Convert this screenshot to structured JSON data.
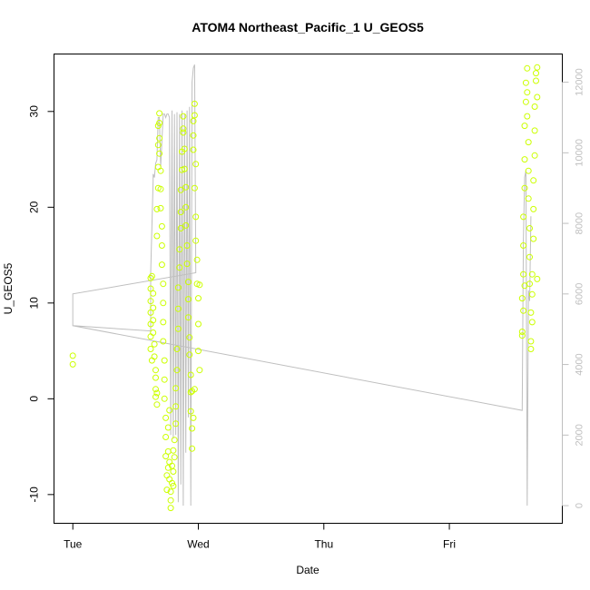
{
  "chart_data": {
    "type": "scatter",
    "title": "ATOM4 Northeast_Pacific_1 U_GEOS5",
    "xlabel": "Date",
    "ylabel": "U_GEOS5",
    "x_ticks": [
      "Tue",
      "Wed",
      "Thu",
      "Fri"
    ],
    "y_ticks": [
      "-10",
      "0",
      "10",
      "20",
      "30"
    ],
    "y2_ticks": [
      "0",
      "2000",
      "4000",
      "6000",
      "8000",
      "10000",
      "12000"
    ],
    "ylim": [
      -13,
      36
    ],
    "y2lim": [
      -500,
      12800
    ],
    "xlim": [
      -0.15,
      3.9
    ],
    "colors": {
      "points": "#ccff00",
      "line": "#bfbfbf",
      "axes": "#000000",
      "secondary_axis": "#bfbfbf"
    },
    "grid": false,
    "series": [
      {
        "values": [
          [
            0.0,
            4.5
          ],
          [
            0.0,
            3.6
          ],
          [
            0.62,
            12.6
          ],
          [
            0.62,
            11.5
          ],
          [
            0.62,
            10.2
          ],
          [
            0.62,
            9.0
          ],
          [
            0.62,
            7.8
          ],
          [
            0.62,
            6.5
          ],
          [
            0.62,
            5.2
          ],
          [
            0.63,
            4.0
          ],
          [
            0.63,
            12.8
          ],
          [
            0.64,
            11.0
          ],
          [
            0.64,
            9.5
          ],
          [
            0.64,
            8.2
          ],
          [
            0.64,
            6.9
          ],
          [
            0.65,
            5.7
          ],
          [
            0.65,
            4.4
          ],
          [
            0.66,
            3.0
          ],
          [
            0.66,
            2.2
          ],
          [
            0.66,
            1.0
          ],
          [
            0.66,
            0.2
          ],
          [
            0.67,
            0.6
          ],
          [
            0.67,
            -0.6
          ],
          [
            0.67,
            17.0
          ],
          [
            0.67,
            19.8
          ],
          [
            0.68,
            22.0
          ],
          [
            0.68,
            24.2
          ],
          [
            0.68,
            26.5
          ],
          [
            0.68,
            28.5
          ],
          [
            0.69,
            29.8
          ],
          [
            0.69,
            28.8
          ],
          [
            0.69,
            27.2
          ],
          [
            0.69,
            25.6
          ],
          [
            0.7,
            23.8
          ],
          [
            0.7,
            21.9
          ],
          [
            0.7,
            19.9
          ],
          [
            0.71,
            18.0
          ],
          [
            0.71,
            16.0
          ],
          [
            0.71,
            14.0
          ],
          [
            0.72,
            12.0
          ],
          [
            0.72,
            10.0
          ],
          [
            0.72,
            8.0
          ],
          [
            0.72,
            6.0
          ],
          [
            0.73,
            4.0
          ],
          [
            0.73,
            2.0
          ],
          [
            0.73,
            0.0
          ],
          [
            0.74,
            -2.0
          ],
          [
            0.74,
            -4.0
          ],
          [
            0.74,
            -6.0
          ],
          [
            0.75,
            -8.0
          ],
          [
            0.75,
            -9.5
          ],
          [
            0.76,
            -7.2
          ],
          [
            0.76,
            -5.5
          ],
          [
            0.76,
            -3.0
          ],
          [
            0.77,
            -1.2
          ],
          [
            0.77,
            -6.6
          ],
          [
            0.77,
            -8.4
          ],
          [
            0.78,
            -9.7
          ],
          [
            0.78,
            -11.4
          ],
          [
            0.78,
            -10.6
          ],
          [
            0.79,
            -8.8
          ],
          [
            0.79,
            -7.0
          ],
          [
            0.8,
            -5.4
          ],
          [
            0.8,
            -7.6
          ],
          [
            0.8,
            -9.1
          ],
          [
            0.81,
            -6.1
          ],
          [
            0.81,
            -4.3
          ],
          [
            0.82,
            -2.6
          ],
          [
            0.82,
            -0.8
          ],
          [
            0.82,
            1.1
          ],
          [
            0.83,
            3.0
          ],
          [
            0.83,
            5.2
          ],
          [
            0.84,
            7.3
          ],
          [
            0.84,
            9.4
          ],
          [
            0.84,
            11.6
          ],
          [
            0.85,
            13.7
          ],
          [
            0.85,
            15.6
          ],
          [
            0.86,
            17.8
          ],
          [
            0.86,
            19.5
          ],
          [
            0.86,
            21.8
          ],
          [
            0.87,
            23.9
          ],
          [
            0.87,
            25.8
          ],
          [
            0.88,
            27.8
          ],
          [
            0.88,
            29.5
          ],
          [
            0.88,
            28.2
          ],
          [
            0.89,
            26.1
          ],
          [
            0.89,
            24.0
          ],
          [
            0.9,
            22.1
          ],
          [
            0.9,
            20.0
          ],
          [
            0.9,
            18.1
          ],
          [
            0.91,
            16.0
          ],
          [
            0.91,
            14.1
          ],
          [
            0.92,
            12.2
          ],
          [
            0.92,
            10.4
          ],
          [
            0.92,
            8.5
          ],
          [
            0.93,
            6.4
          ],
          [
            0.93,
            4.6
          ],
          [
            0.94,
            2.5
          ],
          [
            0.94,
            0.7
          ],
          [
            0.94,
            -1.3
          ],
          [
            0.95,
            -3.1
          ],
          [
            0.95,
            -5.2
          ],
          [
            0.96,
            26.0
          ],
          [
            0.96,
            27.5
          ],
          [
            0.96,
            29.0
          ],
          [
            0.97,
            30.8
          ],
          [
            0.97,
            29.6
          ],
          [
            0.97,
            22.0
          ],
          [
            0.98,
            24.5
          ],
          [
            0.98,
            19.0
          ],
          [
            0.98,
            16.5
          ],
          [
            0.99,
            14.5
          ],
          [
            0.99,
            12.0
          ],
          [
            1.0,
            10.5
          ],
          [
            1.0,
            7.8
          ],
          [
            1.0,
            5.0
          ],
          [
            1.01,
            3.0
          ],
          [
            1.01,
            11.9
          ],
          [
            0.97,
            1.0
          ],
          [
            0.96,
            -2.0
          ],
          [
            0.95,
            0.8
          ],
          [
            3.58,
            7.0
          ],
          [
            3.58,
            10.5
          ],
          [
            3.59,
            13.0
          ],
          [
            3.59,
            16.0
          ],
          [
            3.59,
            19.0
          ],
          [
            3.6,
            22.0
          ],
          [
            3.6,
            25.0
          ],
          [
            3.6,
            28.5
          ],
          [
            3.61,
            31.0
          ],
          [
            3.61,
            33.0
          ],
          [
            3.62,
            34.5
          ],
          [
            3.62,
            32.0
          ],
          [
            3.62,
            29.5
          ],
          [
            3.63,
            26.8
          ],
          [
            3.63,
            23.8
          ],
          [
            3.63,
            20.9
          ],
          [
            3.64,
            17.8
          ],
          [
            3.64,
            14.8
          ],
          [
            3.64,
            12.0
          ],
          [
            3.65,
            9.0
          ],
          [
            3.65,
            6.0
          ],
          [
            3.65,
            5.2
          ],
          [
            3.66,
            8.0
          ],
          [
            3.66,
            10.9
          ],
          [
            3.66,
            13.0
          ],
          [
            3.67,
            16.7
          ],
          [
            3.67,
            19.8
          ],
          [
            3.67,
            22.8
          ],
          [
            3.68,
            25.4
          ],
          [
            3.68,
            28.0
          ],
          [
            3.68,
            30.5
          ],
          [
            3.69,
            33.2
          ],
          [
            3.69,
            34.0
          ],
          [
            3.7,
            34.6
          ],
          [
            3.7,
            12.5
          ],
          [
            3.7,
            31.5
          ],
          [
            3.58,
            6.6
          ],
          [
            3.59,
            9.2
          ],
          [
            3.6,
            11.8
          ]
        ]
      },
      {
        "values": [
          [
            0.0,
            6000
          ],
          [
            0.0,
            5100
          ],
          [
            0.62,
            4950
          ],
          [
            0.62,
            6600
          ],
          [
            0.64,
            9200
          ],
          [
            0.64,
            9400
          ],
          [
            0.65,
            9300
          ],
          [
            0.66,
            9700
          ],
          [
            0.67,
            9800
          ],
          [
            0.68,
            11000
          ],
          [
            0.69,
            11000
          ],
          [
            0.7,
            9600
          ],
          [
            0.72,
            11100
          ],
          [
            0.73,
            11100
          ],
          [
            0.74,
            11000
          ],
          [
            0.75,
            11100
          ],
          [
            0.76,
            11100
          ],
          [
            0.77,
            11000
          ],
          [
            0.78,
            2000
          ],
          [
            0.79,
            11200
          ],
          [
            0.8,
            1900
          ],
          [
            0.81,
            11100
          ],
          [
            0.82,
            2000
          ],
          [
            0.83,
            11150
          ],
          [
            0.84,
            100
          ],
          [
            0.85,
            11100
          ],
          [
            0.86,
            600
          ],
          [
            0.87,
            11200
          ],
          [
            0.88,
            0
          ],
          [
            0.89,
            11100
          ],
          [
            0.9,
            1500
          ],
          [
            0.91,
            11200
          ],
          [
            0.92,
            2500
          ],
          [
            0.93,
            11300
          ],
          [
            0.94,
            0
          ],
          [
            0.95,
            12000
          ],
          [
            0.96,
            12400
          ],
          [
            0.97,
            12500
          ],
          [
            0.98,
            6600
          ],
          [
            0.0,
            6000
          ],
          [
            0.0,
            5100
          ],
          [
            3.58,
            2700
          ],
          [
            3.59,
            7500
          ],
          [
            3.6,
            9300
          ],
          [
            3.61,
            9500
          ],
          [
            3.62,
            0
          ],
          [
            3.63,
            6100
          ],
          [
            3.64,
            5800
          ],
          [
            3.65,
            8200
          ]
        ]
      }
    ]
  }
}
